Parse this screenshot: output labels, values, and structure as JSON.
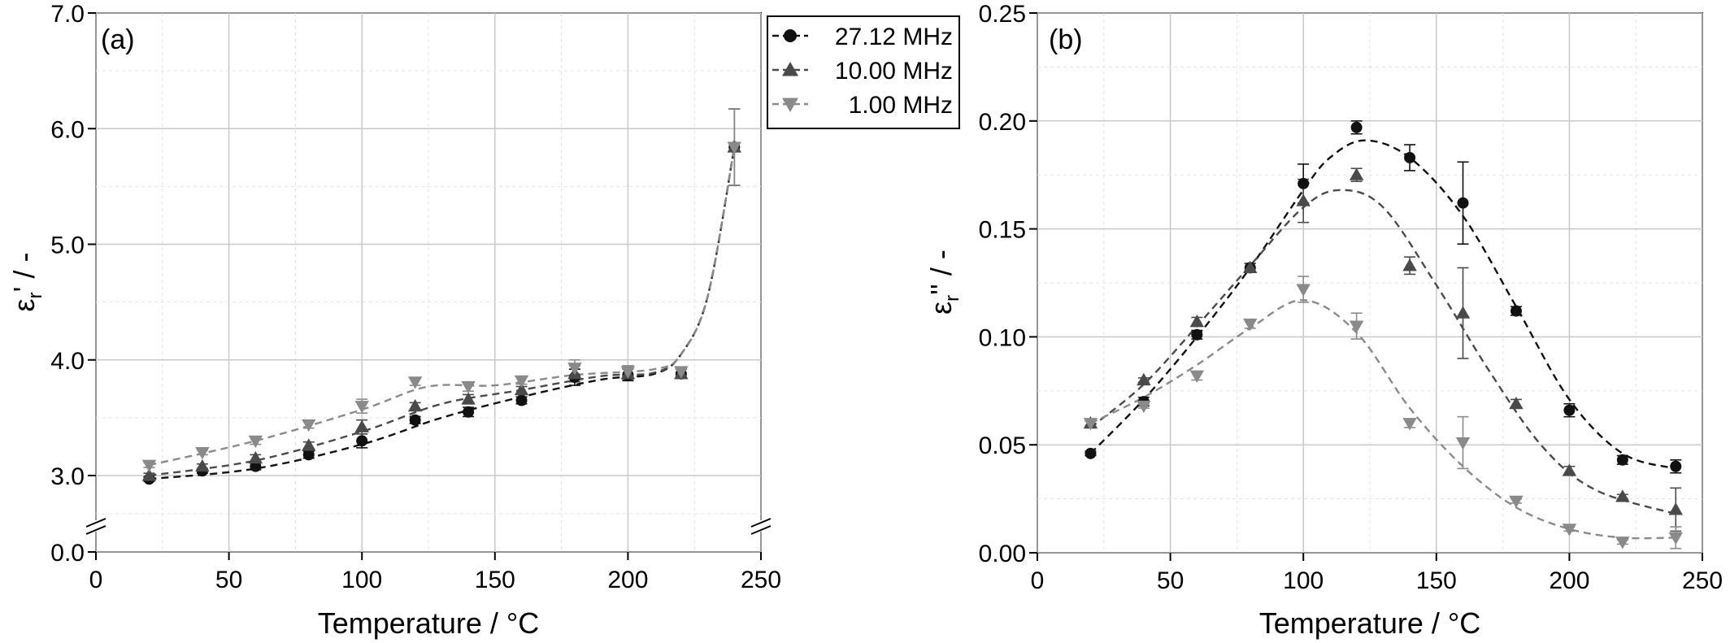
{
  "chart_data": [
    {
      "type": "scatter",
      "panel_label": "(a)",
      "xlabel": "Temperature / °C",
      "ylabel_base": "ε",
      "ylabel_sub": "r",
      "ylabel_suffix": "' / -",
      "xlim": [
        0,
        250
      ],
      "ylim_broken": {
        "lower_tick": 0.0,
        "upper_range": [
          2.5,
          7.0
        ]
      },
      "x_ticks": [
        "0",
        "50",
        "100",
        "150",
        "200",
        "250"
      ],
      "y_ticks": [
        "0.0",
        "3.0",
        "4.0",
        "5.0",
        "6.0",
        "7.0"
      ],
      "grid": true,
      "x": [
        20,
        40,
        60,
        80,
        100,
        120,
        140,
        160,
        180,
        200,
        220,
        240
      ],
      "series": [
        {
          "name": "27.12 MHz",
          "marker": "circle",
          "color": "#111111",
          "values": [
            2.97,
            3.04,
            3.08,
            3.18,
            3.3,
            3.48,
            3.55,
            3.65,
            3.85,
            3.87,
            3.88,
            5.84
          ],
          "errors": [
            0.02,
            0.02,
            0.03,
            0.03,
            0.06,
            0.03,
            0.04,
            0.03,
            0.07,
            0.05,
            0.04,
            0.33
          ],
          "fit": [
            [
              20,
              2.97
            ],
            [
              60,
              3.06
            ],
            [
              100,
              3.27
            ],
            [
              130,
              3.5
            ],
            [
              160,
              3.68
            ],
            [
              190,
              3.83
            ],
            [
              210,
              3.88
            ],
            [
              220,
              4.05
            ],
            [
              230,
              4.55
            ],
            [
              240,
              5.84
            ]
          ]
        },
        {
          "name": "10.00 MHz",
          "marker": "triangle-up",
          "color": "#4a4a4a",
          "values": [
            3.0,
            3.08,
            3.15,
            3.26,
            3.42,
            3.6,
            3.66,
            3.74,
            3.88,
            3.88,
            3.88,
            5.84
          ],
          "errors": [
            0.02,
            0.02,
            0.03,
            0.03,
            0.06,
            0.03,
            0.04,
            0.03,
            0.07,
            0.05,
            0.04,
            0.33
          ],
          "fit": [
            [
              20,
              3.0
            ],
            [
              60,
              3.13
            ],
            [
              100,
              3.38
            ],
            [
              130,
              3.62
            ],
            [
              160,
              3.74
            ],
            [
              190,
              3.86
            ],
            [
              210,
              3.89
            ],
            [
              220,
              4.05
            ],
            [
              230,
              4.55
            ],
            [
              240,
              5.84
            ]
          ]
        },
        {
          "name": "1.00 MHz",
          "marker": "triangle-down",
          "color": "#8a8a8a",
          "values": [
            3.09,
            3.2,
            3.3,
            3.44,
            3.6,
            3.81,
            3.77,
            3.82,
            3.93,
            3.9,
            3.9,
            5.84
          ],
          "errors": [
            0.02,
            0.02,
            0.03,
            0.03,
            0.06,
            0.03,
            0.04,
            0.03,
            0.07,
            0.05,
            0.04,
            0.33
          ],
          "fit": [
            [
              20,
              3.09
            ],
            [
              60,
              3.3
            ],
            [
              100,
              3.57
            ],
            [
              125,
              3.77
            ],
            [
              150,
              3.78
            ],
            [
              180,
              3.87
            ],
            [
              210,
              3.92
            ],
            [
              220,
              4.05
            ],
            [
              230,
              4.55
            ],
            [
              240,
              5.84
            ]
          ]
        }
      ]
    },
    {
      "type": "scatter",
      "panel_label": "(b)",
      "xlabel": "Temperature / °C",
      "ylabel_base": "ε",
      "ylabel_sub": "r",
      "ylabel_suffix": "'' / -",
      "xlim": [
        0,
        250
      ],
      "ylim": [
        0.0,
        0.25
      ],
      "x_ticks": [
        "0",
        "50",
        "100",
        "150",
        "200",
        "250"
      ],
      "y_ticks": [
        "0.00",
        "0.05",
        "0.10",
        "0.15",
        "0.20",
        "0.25"
      ],
      "grid": true,
      "x": [
        20,
        40,
        60,
        80,
        100,
        120,
        140,
        160,
        180,
        200,
        220,
        240
      ],
      "series": [
        {
          "name": "27.12 MHz",
          "marker": "circle",
          "color": "#111111",
          "values": [
            0.046,
            0.07,
            0.101,
            0.132,
            0.171,
            0.197,
            0.183,
            0.162,
            0.112,
            0.066,
            0.043,
            0.04
          ],
          "errors": [
            0.001,
            0.002,
            0.002,
            0.002,
            0.009,
            0.003,
            0.006,
            0.019,
            0.002,
            0.003,
            0.002,
            0.003
          ],
          "fit": [
            [
              20,
              0.046
            ],
            [
              40,
              0.071
            ],
            [
              60,
              0.1
            ],
            [
              80,
              0.132
            ],
            [
              100,
              0.168
            ],
            [
              110,
              0.183
            ],
            [
              123,
              0.191
            ],
            [
              140,
              0.183
            ],
            [
              160,
              0.156
            ],
            [
              180,
              0.114
            ],
            [
              200,
              0.071
            ],
            [
              220,
              0.046
            ],
            [
              240,
              0.039
            ]
          ]
        },
        {
          "name": "10.00 MHz",
          "marker": "triangle-up",
          "color": "#4a4a4a",
          "values": [
            0.06,
            0.08,
            0.107,
            0.132,
            0.163,
            0.175,
            0.133,
            0.111,
            0.069,
            0.038,
            0.026,
            0.02
          ],
          "errors": [
            0.001,
            0.001,
            0.002,
            0.002,
            0.01,
            0.003,
            0.004,
            0.021,
            0.002,
            0.002,
            0.001,
            0.01
          ],
          "fit": [
            [
              20,
              0.058
            ],
            [
              40,
              0.078
            ],
            [
              60,
              0.105
            ],
            [
              80,
              0.133
            ],
            [
              100,
              0.16
            ],
            [
              114,
              0.168
            ],
            [
              130,
              0.16
            ],
            [
              150,
              0.124
            ],
            [
              170,
              0.084
            ],
            [
              190,
              0.049
            ],
            [
              210,
              0.029
            ],
            [
              240,
              0.018
            ]
          ]
        },
        {
          "name": "1.00 MHz",
          "marker": "triangle-down",
          "color": "#8a8a8a",
          "values": [
            0.06,
            0.068,
            0.082,
            0.106,
            0.122,
            0.105,
            0.06,
            0.051,
            0.024,
            0.011,
            0.005,
            0.007
          ],
          "errors": [
            0.001,
            0.001,
            0.002,
            0.002,
            0.006,
            0.006,
            0.002,
            0.012,
            0.001,
            0.001,
            0.001,
            0.005
          ],
          "fit": [
            [
              20,
              0.06
            ],
            [
              40,
              0.072
            ],
            [
              60,
              0.087
            ],
            [
              80,
              0.104
            ],
            [
              100,
              0.117
            ],
            [
              120,
              0.102
            ],
            [
              140,
              0.067
            ],
            [
              160,
              0.04
            ],
            [
              180,
              0.021
            ],
            [
              200,
              0.011
            ],
            [
              220,
              0.007
            ],
            [
              240,
              0.007
            ]
          ]
        }
      ]
    }
  ],
  "legend": {
    "entries": [
      "27.12 MHz",
      "10.00 MHz",
      "1.00 MHz"
    ],
    "placement": "top, between panels"
  }
}
